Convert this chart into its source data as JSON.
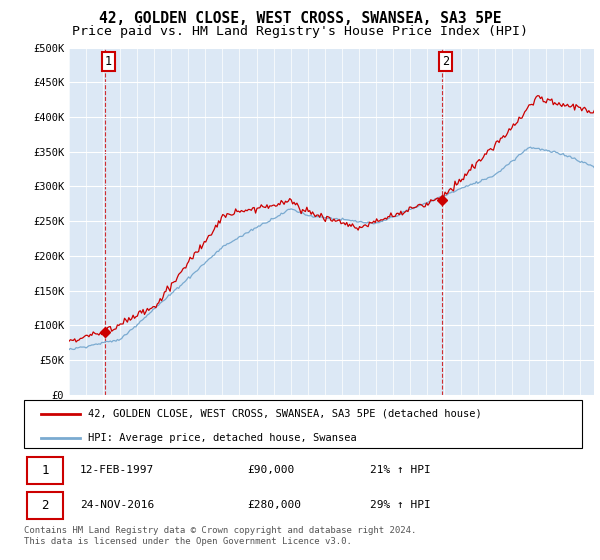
{
  "title": "42, GOLDEN CLOSE, WEST CROSS, SWANSEA, SA3 5PE",
  "subtitle": "Price paid vs. HM Land Registry's House Price Index (HPI)",
  "title_fontsize": 10.5,
  "subtitle_fontsize": 9.5,
  "ylabel_ticks": [
    "£0",
    "£50K",
    "£100K",
    "£150K",
    "£200K",
    "£250K",
    "£300K",
    "£350K",
    "£400K",
    "£450K",
    "£500K"
  ],
  "ytick_values": [
    0,
    50000,
    100000,
    150000,
    200000,
    250000,
    300000,
    350000,
    400000,
    450000,
    500000
  ],
  "ylim": [
    0,
    500000
  ],
  "xlim_start": 1995.0,
  "xlim_end": 2025.8,
  "sale1_year": 1997.12,
  "sale1_price": 90000,
  "sale2_year": 2016.9,
  "sale2_price": 280000,
  "sale1_label": "1",
  "sale2_label": "2",
  "sale1_date": "12-FEB-1997",
  "sale1_amount": "£90,000",
  "sale1_hpi": "21% ↑ HPI",
  "sale2_date": "24-NOV-2016",
  "sale2_amount": "£280,000",
  "sale2_hpi": "29% ↑ HPI",
  "line1_color": "#cc0000",
  "line2_color": "#7aaad0",
  "line1_label": "42, GOLDEN CLOSE, WEST CROSS, SWANSEA, SA3 5PE (detached house)",
  "line2_label": "HPI: Average price, detached house, Swansea",
  "background_color": "#dce8f5",
  "footer_text": "Contains HM Land Registry data © Crown copyright and database right 2024.\nThis data is licensed under the Open Government Licence v3.0.",
  "grid_color": "#c8d8eb",
  "annotation_box_color": "#cc0000"
}
